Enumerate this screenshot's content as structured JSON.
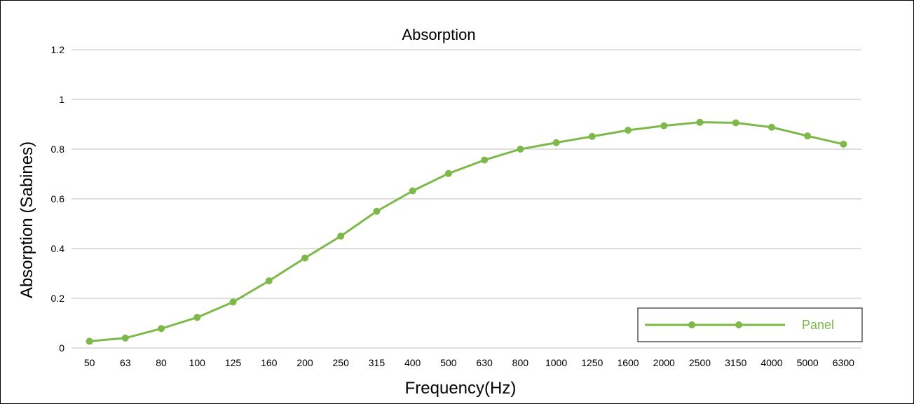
{
  "chart_data": {
    "type": "line",
    "title": "Absorption",
    "xlabel": "Frequency(Hz)",
    "ylabel": "Absorption (Sabines)",
    "categories": [
      "50",
      "63",
      "80",
      "100",
      "125",
      "160",
      "200",
      "250",
      "315",
      "400",
      "500",
      "630",
      "800",
      "1000",
      "1250",
      "1600",
      "2000",
      "2500",
      "3150",
      "4000",
      "5000",
      "6300"
    ],
    "y_ticks": [
      "0",
      "0.2",
      "0.4",
      "0.6",
      "0.8",
      "1",
      "1.2"
    ],
    "ylim": [
      0,
      1.2
    ],
    "grid": true,
    "legend_position": "bottom-right",
    "series": [
      {
        "name": "Panel",
        "color": "#7db94a",
        "values": [
          0.027,
          0.04,
          0.078,
          0.123,
          0.185,
          0.27,
          0.362,
          0.45,
          0.55,
          0.632,
          0.702,
          0.756,
          0.8,
          0.826,
          0.851,
          0.876,
          0.894,
          0.908,
          0.906,
          0.888,
          0.853,
          0.82
        ]
      }
    ]
  }
}
